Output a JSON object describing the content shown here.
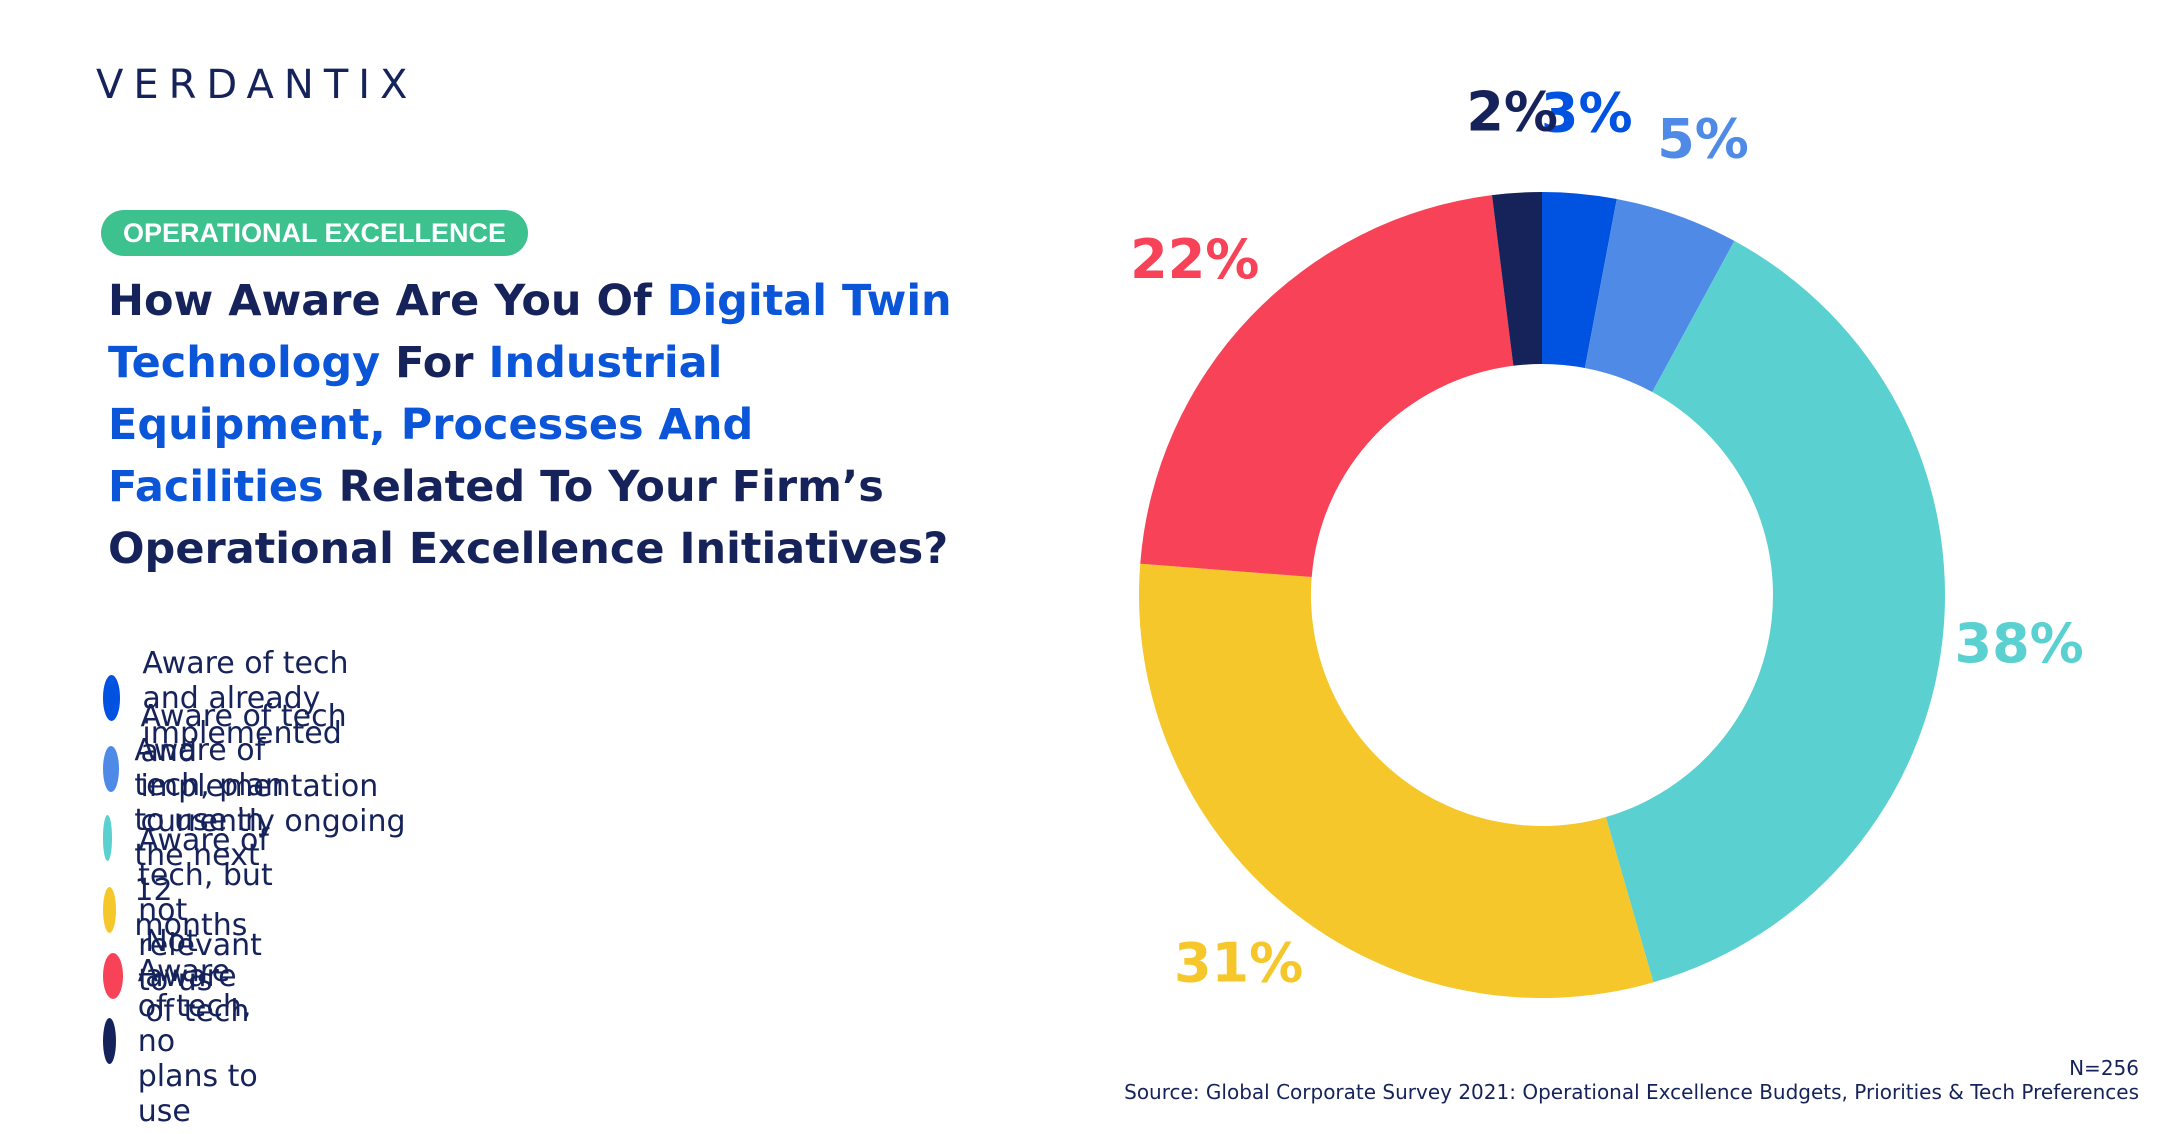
{
  "logo": "VERDANTIX",
  "badge": "OPERATIONAL EXCELLENCE",
  "title": [
    {
      "text": "How Aware Are You Of ",
      "color": "#16235a"
    },
    {
      "text": "Digital Twin Technology",
      "color": "#0a55d8"
    },
    {
      "text": " For ",
      "color": "#16235a"
    },
    {
      "text": "Industrial Equipment, Processes And Facilities",
      "color": "#0a55d8"
    },
    {
      "text": " Related To Your Firm’s Operational Excellence Initiatives?",
      "color": "#16235a"
    }
  ],
  "chart_data": {
    "type": "donut",
    "categories": [
      "Aware of tech and already implemented",
      "Aware of tech and implementation currently ongoing",
      "Aware of tech, plan to use in the next 12 months",
      "Aware of tech, but not relevant to us",
      "Not aware of tech",
      "Aware of tech, no plans to use"
    ],
    "values": [
      3,
      5,
      38,
      31,
      22,
      2
    ],
    "value_labels": [
      "3%",
      "5%",
      "38%",
      "31%",
      "22%",
      "2%"
    ],
    "colors": [
      "#0052e0",
      "#4f8be6",
      "#5bd0d0",
      "#f5c72a",
      "#f74257",
      "#16235a"
    ]
  },
  "note": "N=256",
  "source": "Source: Global Corporate Survey 2021: Operational Excellence Budgets, Priorities & Tech Preferences"
}
